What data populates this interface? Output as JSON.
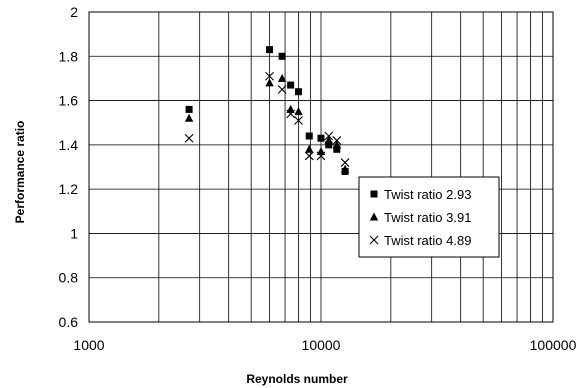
{
  "chart_data": {
    "type": "scatter",
    "xlabel": "Reynolds number",
    "ylabel": "Performance ratio",
    "xscale": "log",
    "xlim": [
      1000,
      100000
    ],
    "ylim": [
      0.6,
      2
    ],
    "x_tick_labels": [
      "1000",
      "10000",
      "100000"
    ],
    "y_tick_labels": [
      "0.6",
      "0.8",
      "1",
      "1.2",
      "1.4",
      "1.6",
      "1.8",
      "2"
    ],
    "grid": true,
    "legend_position": "lower-right",
    "series": [
      {
        "name": "Twist ratio 2.93",
        "marker": "square",
        "points": [
          {
            "x": 2700,
            "y": 1.56
          },
          {
            "x": 6000,
            "y": 1.83
          },
          {
            "x": 6800,
            "y": 1.8
          },
          {
            "x": 7400,
            "y": 1.67
          },
          {
            "x": 8000,
            "y": 1.64
          },
          {
            "x": 8900,
            "y": 1.44
          },
          {
            "x": 10000,
            "y": 1.43
          },
          {
            "x": 10800,
            "y": 1.4
          },
          {
            "x": 11700,
            "y": 1.38
          },
          {
            "x": 12700,
            "y": 1.28
          }
        ]
      },
      {
        "name": "Twist ratio 3.91",
        "marker": "triangle",
        "points": [
          {
            "x": 2700,
            "y": 1.52
          },
          {
            "x": 6000,
            "y": 1.68
          },
          {
            "x": 6800,
            "y": 1.7
          },
          {
            "x": 7400,
            "y": 1.56
          },
          {
            "x": 8000,
            "y": 1.55
          },
          {
            "x": 8900,
            "y": 1.38
          },
          {
            "x": 10000,
            "y": 1.37
          },
          {
            "x": 10800,
            "y": 1.42
          },
          {
            "x": 11700,
            "y": 1.4
          },
          {
            "x": 12700,
            "y": 1.29
          }
        ]
      },
      {
        "name": "Twist ratio 4.89",
        "marker": "x",
        "points": [
          {
            "x": 2700,
            "y": 1.43
          },
          {
            "x": 6000,
            "y": 1.71
          },
          {
            "x": 6800,
            "y": 1.65
          },
          {
            "x": 7400,
            "y": 1.54
          },
          {
            "x": 8000,
            "y": 1.51
          },
          {
            "x": 8900,
            "y": 1.35
          },
          {
            "x": 10000,
            "y": 1.35
          },
          {
            "x": 10800,
            "y": 1.44
          },
          {
            "x": 11700,
            "y": 1.42
          },
          {
            "x": 12700,
            "y": 1.32
          }
        ]
      }
    ]
  }
}
